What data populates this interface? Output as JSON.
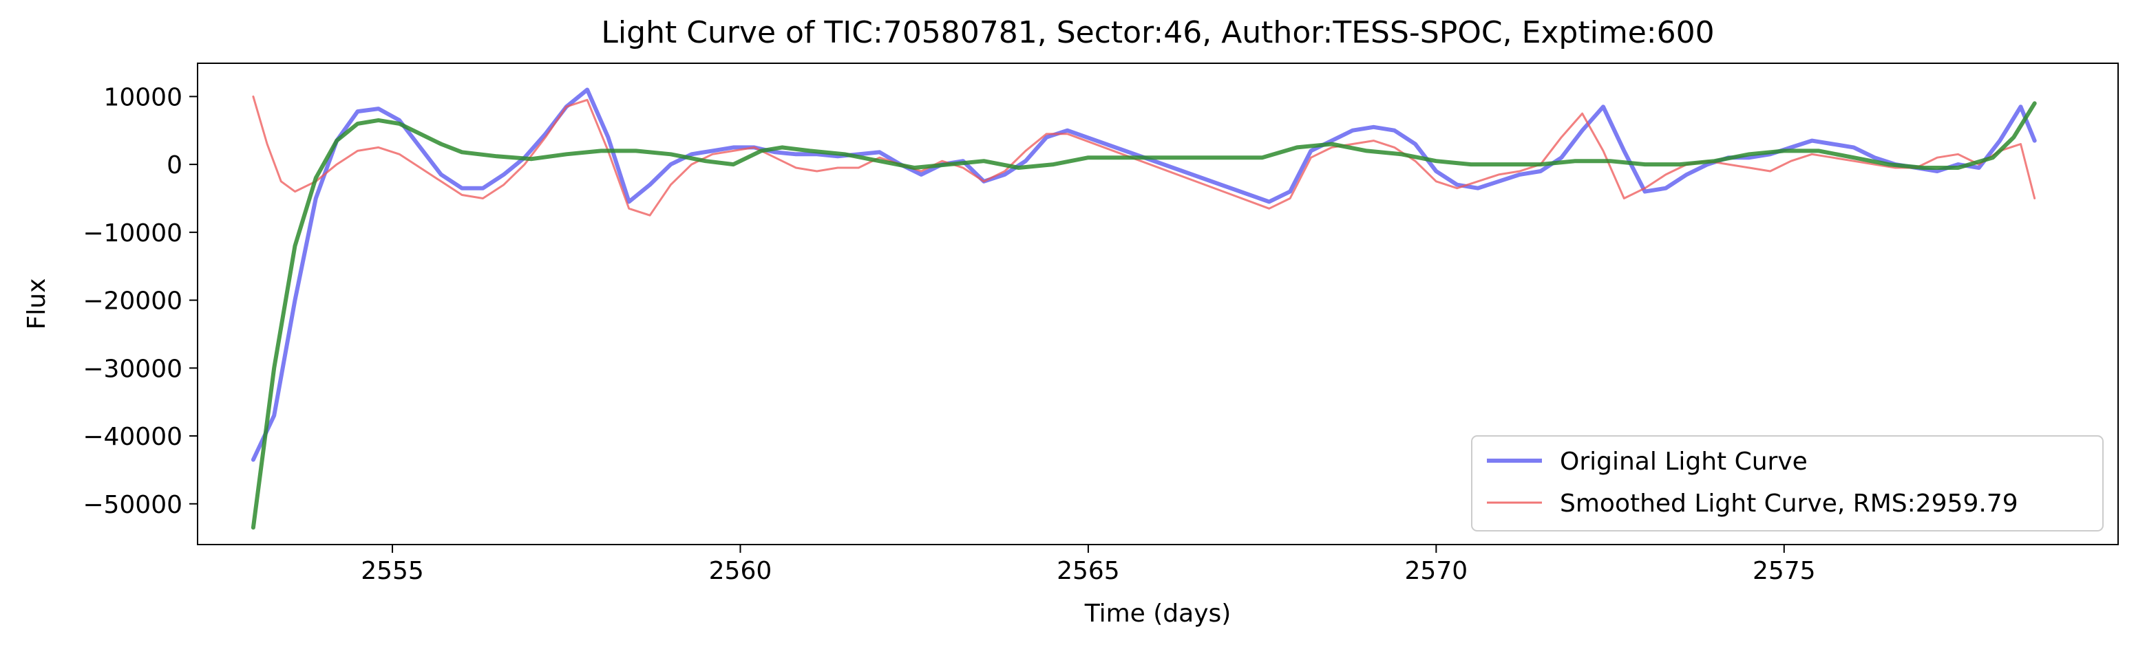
{
  "chart_data": {
    "type": "line",
    "title": "Light Curve of TIC:70580781, Sector:46, Author:TESS-SPOC, Exptime:600",
    "xlabel": "Time (days)",
    "ylabel": "Flux",
    "xlim": [
      2552.2,
      2579.8
    ],
    "ylim": [
      -56000,
      14900
    ],
    "xticks": [
      2555,
      2560,
      2565,
      2570,
      2575
    ],
    "xtick_labels": [
      "2555",
      "2560",
      "2565",
      "2570",
      "2575"
    ],
    "yticks": [
      10000,
      0,
      -10000,
      -20000,
      -30000,
      -40000,
      -50000
    ],
    "ytick_labels": [
      "10000",
      "0",
      "−10000",
      "−20000",
      "−30000",
      "−40000",
      "−50000"
    ],
    "grid": false,
    "legend": {
      "position": "lower-right",
      "entries": [
        "Original Light Curve",
        "Smoothed Light Curve, RMS:2959.79"
      ]
    },
    "series": [
      {
        "name": "Original Light Curve",
        "color": "#5b5bf0",
        "x": [
          2553.0,
          2553.3,
          2553.6,
          2553.9,
          2554.2,
          2554.5,
          2554.8,
          2555.1,
          2555.4,
          2555.7,
          2556.0,
          2556.3,
          2556.6,
          2556.9,
          2557.2,
          2557.5,
          2557.8,
          2558.1,
          2558.4,
          2558.7,
          2559.0,
          2559.3,
          2559.6,
          2559.9,
          2560.2,
          2560.5,
          2560.8,
          2561.1,
          2561.4,
          2561.7,
          2562.0,
          2562.3,
          2562.6,
          2562.9,
          2563.2,
          2563.5,
          2563.8,
          2564.1,
          2564.4,
          2564.7,
          2567.6,
          2567.9,
          2568.2,
          2568.5,
          2568.8,
          2569.1,
          2569.4,
          2569.7,
          2570.0,
          2570.3,
          2570.6,
          2570.9,
          2571.2,
          2571.5,
          2571.8,
          2572.1,
          2572.4,
          2572.7,
          2573.0,
          2573.3,
          2573.6,
          2573.9,
          2574.2,
          2574.5,
          2574.8,
          2575.1,
          2575.4,
          2575.7,
          2576.0,
          2576.3,
          2576.6,
          2576.9,
          2577.2,
          2577.5,
          2577.8,
          2578.1,
          2578.4,
          2578.6
        ],
        "y": [
          -43500,
          -37000,
          -20000,
          -5000,
          3500,
          7800,
          8200,
          6500,
          2500,
          -1500,
          -3500,
          -3500,
          -1500,
          1000,
          4500,
          8500,
          11000,
          4000,
          -5500,
          -3000,
          0,
          1500,
          2000,
          2500,
          2500,
          1800,
          1500,
          1500,
          1200,
          1500,
          1800,
          0,
          -1500,
          0,
          500,
          -2500,
          -1500,
          500,
          4000,
          5000,
          -5500,
          -4000,
          2000,
          3500,
          5000,
          5500,
          5000,
          3000,
          -1000,
          -3000,
          -3500,
          -2500,
          -1500,
          -1000,
          1000,
          5000,
          8500,
          2000,
          -4000,
          -3500,
          -1500,
          0,
          1000,
          1000,
          1500,
          2500,
          3500,
          3000,
          2500,
          1000,
          0,
          -500,
          -1000,
          0,
          -500,
          3500,
          8500,
          3500
        ]
      },
      {
        "name": "Smoothed Light Curve, RMS:2959.79",
        "color": "#ee5555",
        "x": [
          2553.0,
          2553.2,
          2553.4,
          2553.6,
          2553.9,
          2554.2,
          2554.5,
          2554.8,
          2555.1,
          2555.4,
          2555.7,
          2556.0,
          2556.3,
          2556.6,
          2556.9,
          2557.2,
          2557.5,
          2557.8,
          2558.1,
          2558.4,
          2558.7,
          2559.0,
          2559.3,
          2559.6,
          2559.9,
          2560.2,
          2560.5,
          2560.8,
          2561.1,
          2561.4,
          2561.7,
          2562.0,
          2562.3,
          2562.6,
          2562.9,
          2563.2,
          2563.5,
          2563.8,
          2564.1,
          2564.4,
          2564.7,
          2567.6,
          2567.9,
          2568.2,
          2568.5,
          2568.8,
          2569.1,
          2569.4,
          2569.7,
          2570.0,
          2570.3,
          2570.6,
          2570.9,
          2571.2,
          2571.5,
          2571.8,
          2572.1,
          2572.4,
          2572.7,
          2573.0,
          2573.3,
          2573.6,
          2573.9,
          2574.2,
          2574.5,
          2574.8,
          2575.1,
          2575.4,
          2575.7,
          2576.0,
          2576.3,
          2576.6,
          2576.9,
          2577.2,
          2577.5,
          2577.8,
          2578.1,
          2578.4,
          2578.6
        ],
        "y": [
          10000,
          3000,
          -2500,
          -4000,
          -2500,
          0,
          2000,
          2500,
          1500,
          -500,
          -2500,
          -4500,
          -5000,
          -3000,
          0,
          4000,
          8500,
          9500,
          2000,
          -6500,
          -7500,
          -3000,
          0,
          1500,
          2000,
          2500,
          1000,
          -500,
          -1000,
          -500,
          -500,
          1000,
          0,
          -1000,
          500,
          -500,
          -2500,
          -1000,
          2000,
          4500,
          4500,
          -6500,
          -5000,
          1000,
          2500,
          3000,
          3500,
          2500,
          500,
          -2500,
          -3500,
          -2500,
          -1500,
          -1000,
          0,
          4000,
          7500,
          2000,
          -5000,
          -3500,
          -1500,
          0,
          500,
          0,
          -500,
          -1000,
          500,
          1500,
          1000,
          500,
          0,
          -500,
          -500,
          1000,
          1500,
          0,
          2000,
          3000,
          -5000
        ]
      },
      {
        "name": "",
        "color": "#2e8b2e",
        "x": [
          2553.0,
          2553.3,
          2553.6,
          2553.9,
          2554.2,
          2554.5,
          2554.8,
          2555.1,
          2555.4,
          2555.7,
          2556.0,
          2556.5,
          2557.0,
          2557.5,
          2558.0,
          2558.5,
          2559.0,
          2559.5,
          2559.9,
          2560.3,
          2560.6,
          2561.0,
          2561.5,
          2562.0,
          2562.5,
          2563.0,
          2563.5,
          2564.0,
          2564.5,
          2565.0,
          2566.0,
          2567.0,
          2567.5,
          2568.0,
          2568.5,
          2569.0,
          2569.5,
          2570.0,
          2570.5,
          2571.0,
          2571.5,
          2572.0,
          2572.5,
          2573.0,
          2573.5,
          2574.0,
          2574.5,
          2575.0,
          2575.5,
          2576.0,
          2576.5,
          2577.0,
          2577.5,
          2578.0,
          2578.3,
          2578.6
        ],
        "y": [
          -53500,
          -30000,
          -12000,
          -2000,
          3500,
          6000,
          6500,
          6000,
          4500,
          3000,
          1800,
          1200,
          800,
          1500,
          2000,
          2000,
          1500,
          500,
          0,
          2000,
          2500,
          2000,
          1500,
          500,
          -500,
          0,
          500,
          -500,
          0,
          1000,
          1000,
          1000,
          1000,
          2500,
          3000,
          2000,
          1500,
          500,
          0,
          0,
          0,
          500,
          500,
          0,
          0,
          500,
          1500,
          2000,
          2000,
          1000,
          0,
          -500,
          -500,
          1000,
          4000,
          9000
        ]
      }
    ]
  }
}
